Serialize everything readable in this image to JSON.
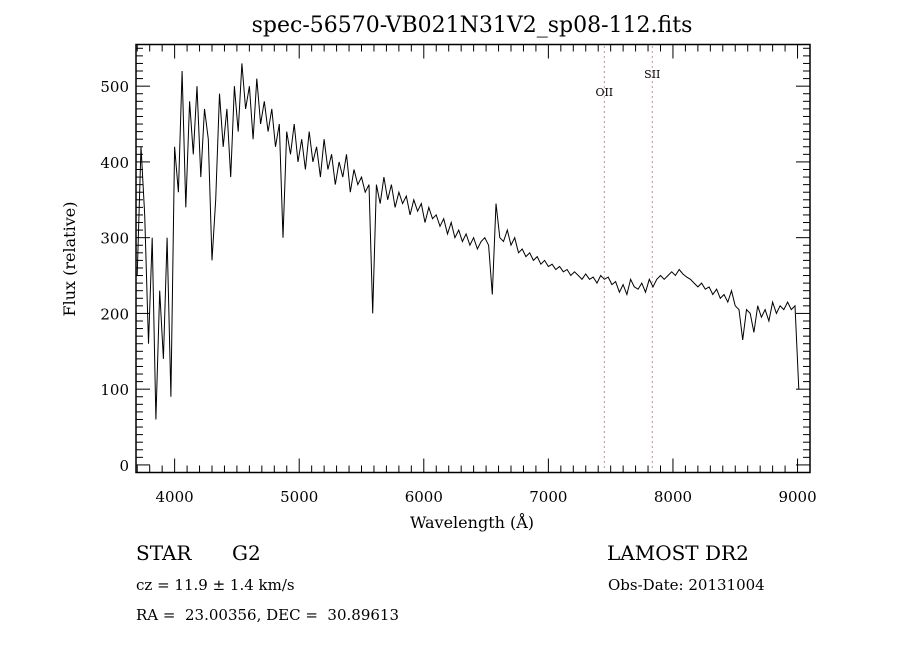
{
  "chart_data": {
    "type": "line",
    "title": "spec-56570-VB021N31V2_sp08-112.fits",
    "xlabel": "Wavelength (Å)",
    "ylabel": "Flux (relative)",
    "xlim": [
      3690,
      9100
    ],
    "ylim": [
      -10,
      555
    ],
    "grid": false,
    "x_ticks": [
      4000,
      5000,
      6000,
      7000,
      8000,
      9000
    ],
    "y_ticks": [
      0,
      100,
      200,
      300,
      400,
      500
    ],
    "x_ticks_labels": [
      "4000",
      "5000",
      "6000",
      "7000",
      "8000",
      "9000"
    ],
    "y_ticks_labels": [
      "0",
      "100",
      "200",
      "300",
      "400",
      "500"
    ],
    "x_minor_step": 100,
    "y_minor_step": 10,
    "series": [
      {
        "name": "flux",
        "x_start": 3700,
        "x_step": 30,
        "values": [
          250,
          420,
          330,
          160,
          300,
          60,
          230,
          140,
          300,
          90,
          420,
          360,
          520,
          340,
          480,
          410,
          500,
          380,
          470,
          430,
          270,
          350,
          490,
          420,
          470,
          380,
          500,
          440,
          530,
          470,
          500,
          430,
          510,
          450,
          480,
          440,
          470,
          420,
          450,
          300,
          440,
          410,
          450,
          400,
          430,
          390,
          440,
          400,
          420,
          380,
          430,
          390,
          410,
          370,
          400,
          380,
          410,
          360,
          390,
          370,
          380,
          360,
          370,
          200,
          370,
          345,
          380,
          350,
          370,
          340,
          360,
          345,
          355,
          330,
          350,
          335,
          345,
          320,
          340,
          325,
          330,
          315,
          325,
          305,
          320,
          300,
          310,
          295,
          305,
          290,
          300,
          285,
          295,
          300,
          290,
          225,
          345,
          300,
          295,
          310,
          290,
          300,
          280,
          285,
          275,
          280,
          270,
          275,
          265,
          270,
          262,
          265,
          258,
          262,
          255,
          258,
          250,
          255,
          250,
          245,
          252,
          245,
          248,
          240,
          250,
          245,
          248,
          238,
          242,
          228,
          238,
          225,
          245,
          235,
          232,
          240,
          228,
          245,
          235,
          245,
          250,
          245,
          250,
          255,
          250,
          258,
          252,
          248,
          245,
          240,
          235,
          240,
          232,
          235,
          225,
          232,
          220,
          225,
          215,
          230,
          210,
          205,
          165,
          205,
          200,
          175,
          210,
          195,
          205,
          190,
          215,
          200,
          210,
          205,
          215,
          205,
          210,
          100
        ]
      }
    ],
    "annotations": [
      {
        "label": "OII",
        "x": 7449
      },
      {
        "label": "SII",
        "x": 7834
      }
    ]
  },
  "info": {
    "object_type": "STAR",
    "subclass": "G2",
    "survey": "LAMOST DR2",
    "cz": "cz = 11.9 ± 1.4 km/s",
    "obs_date": "Obs-Date: 20131004",
    "coords": "RA =  23.00356, DEC =  30.89613"
  }
}
